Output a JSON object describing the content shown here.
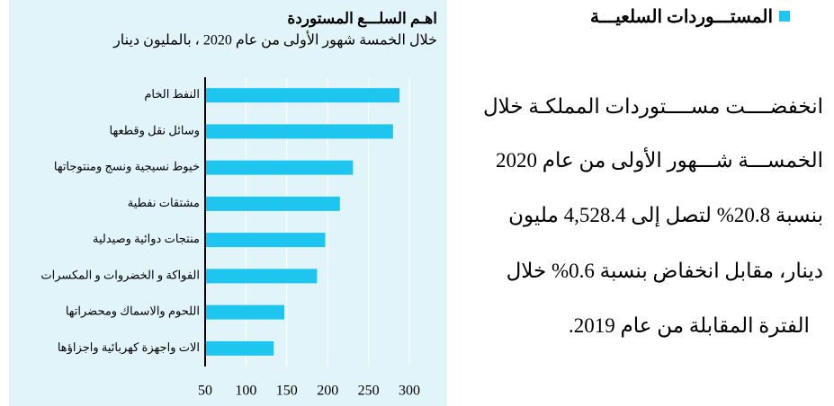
{
  "section": {
    "heading": "المستـــوردات السلعيـــة",
    "lines": [
      "انخفضــــت مســــتوردات المملكـة خلال",
      "الخمســـة شـــهور الأولى من عام 2020",
      "بنسبة 20.8% لتصل إلى 4,528.4 مليون",
      "دينار، مقابل انخفاض بنسبة 0.6% خلال",
      "الفترة المقابلة من عام 2019."
    ]
  },
  "chart_data": {
    "type": "bar",
    "orientation": "horizontal",
    "title": "اهـم السلـــع المستوردة",
    "subtitle": "خلال الخمسة شهور الأولى من عام 2020 ، بالمليون دينار",
    "categories": [
      "النفط الخام",
      "وسائل نقل وقطعها",
      "خيوط نسيجية ونسج ومنتوجاتها",
      "مشتقات نفطية",
      "منتجات دوائية وصيدلية",
      "الفواكة و الخضروات و المكسرات",
      "اللحوم والاسماك ومحضراتها",
      "الات واجهزة كهربائية واجزاؤها"
    ],
    "values": [
      288,
      280,
      231,
      215,
      197,
      187,
      147,
      134
    ],
    "color": "#1ec5ee",
    "xlim": [
      50,
      300
    ],
    "xticks": [
      50,
      100,
      150,
      200,
      250,
      300
    ],
    "grid": true
  }
}
